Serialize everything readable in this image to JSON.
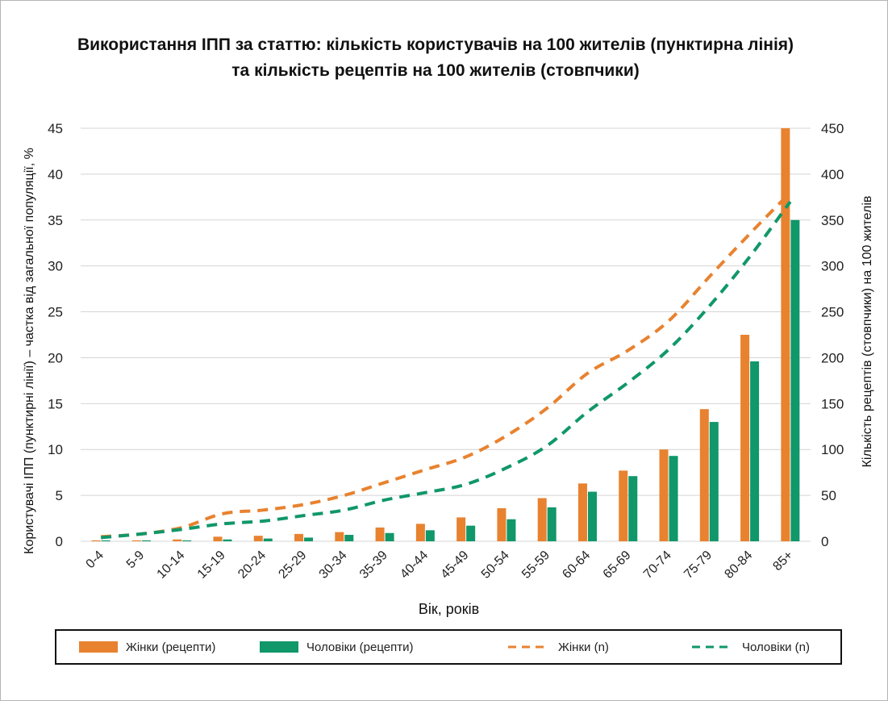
{
  "title": {
    "line1": "Використання ІПП за статтю: кількість користувачів на 100 жителів (пунктирна лінія)",
    "line2": "та кількість рецептів на 100 жителів (стовпчики)"
  },
  "colors": {
    "female": "#e8822f",
    "male": "#10976a",
    "grid": "#d4d4d4",
    "axis_text": "#222222"
  },
  "legend": {
    "female_bars": "Жінки (рецепти)",
    "male_bars": "Чоловіки (рецепти)",
    "female_line": "Жінки (n)",
    "male_line": "Чоловіки (n)"
  },
  "chart_data": {
    "type": "bar",
    "title": "Використання ІПП за статтю: кількість користувачів на 100 жителів (пунктирна лінія) та кількість рецептів на 100 жителів (стовпчики)",
    "xlabel": "Вік, років",
    "ylabel_left": "Користувачі ІПП (пунктирні лінії) – частка від загальної популяції, %",
    "ylabel_right": "Кількість рецептів (стовпчики) на 100 жителів",
    "ylim_left": [
      0,
      45
    ],
    "ylim_right": [
      0,
      450
    ],
    "yticks_left": [
      "0",
      "5",
      "10",
      "15",
      "20",
      "25",
      "30",
      "35",
      "40",
      "45"
    ],
    "yticks_right": [
      "0",
      "50",
      "100",
      "150",
      "200",
      "250",
      "300",
      "350",
      "400",
      "450"
    ],
    "grid": true,
    "categories": [
      "0-4",
      "5-9",
      "10-14",
      "15-19",
      "20-24",
      "25-29",
      "30-34",
      "35-39",
      "40-44",
      "45-49",
      "50-54",
      "55-59",
      "60-64",
      "65-69",
      "70-74",
      "75-79",
      "80-84",
      "85+"
    ],
    "bar_series": [
      {
        "name": "Жінки (рецепти)",
        "axis": "right",
        "values": [
          1,
          1,
          2,
          5,
          6,
          8,
          10,
          15,
          19,
          26,
          36,
          47,
          63,
          77,
          100,
          144,
          225,
          450
        ]
      },
      {
        "name": "Чоловіки (рецепти)",
        "axis": "right",
        "values": [
          1,
          1,
          1,
          2,
          3,
          4,
          7,
          9,
          12,
          17,
          24,
          37,
          54,
          71,
          93,
          130,
          196,
          350
        ]
      }
    ],
    "line_series": [
      {
        "name": "Жінки (n)",
        "axis": "left",
        "style": "dashed",
        "values": [
          0.5,
          0.8,
          1.5,
          3.0,
          3.4,
          4.0,
          5.0,
          6.4,
          7.8,
          9.2,
          11.5,
          14.5,
          18.3,
          20.8,
          24.0,
          28.8,
          33.5,
          38.0
        ]
      },
      {
        "name": "Чоловіки (n)",
        "axis": "left",
        "style": "dashed",
        "values": [
          0.4,
          0.8,
          1.3,
          1.9,
          2.2,
          2.8,
          3.4,
          4.5,
          5.3,
          6.2,
          8.0,
          10.4,
          14.1,
          17.3,
          20.9,
          25.6,
          31.0,
          37.0
        ]
      }
    ]
  }
}
